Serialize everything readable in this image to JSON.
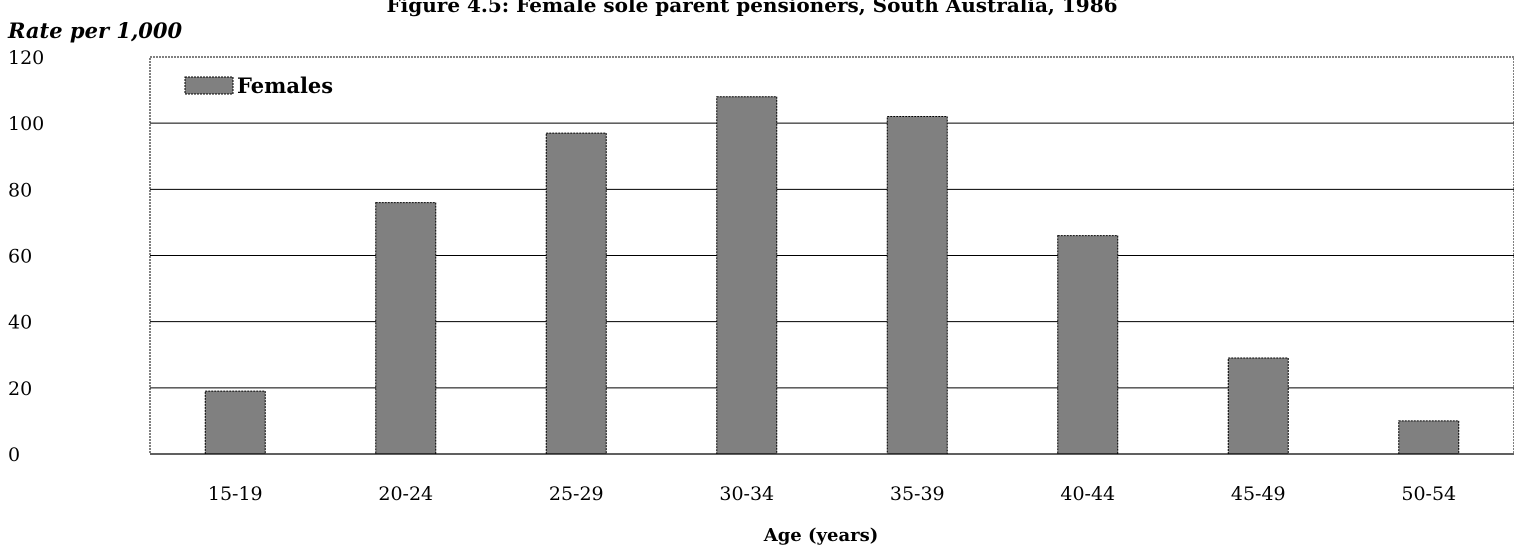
{
  "chart_data": {
    "type": "bar",
    "title": "Figure 4.5: Female sole parent pensioners, South Australia, 1986",
    "ylabel": "Rate per 1,000",
    "xlabel": "Age (years)",
    "categories": [
      "15-19",
      "20-24",
      "25-29",
      "30-34",
      "35-39",
      "40-44",
      "45-49",
      "50-54"
    ],
    "series": [
      {
        "name": "Females",
        "values": [
          19,
          76,
          97,
          108,
          102,
          66,
          29,
          10
        ]
      }
    ],
    "ylim": [
      0,
      120
    ],
    "yticks": [
      0,
      20,
      40,
      60,
      80,
      100,
      120
    ],
    "grid": true,
    "legend": "top-left",
    "bar_color": "#808080"
  }
}
